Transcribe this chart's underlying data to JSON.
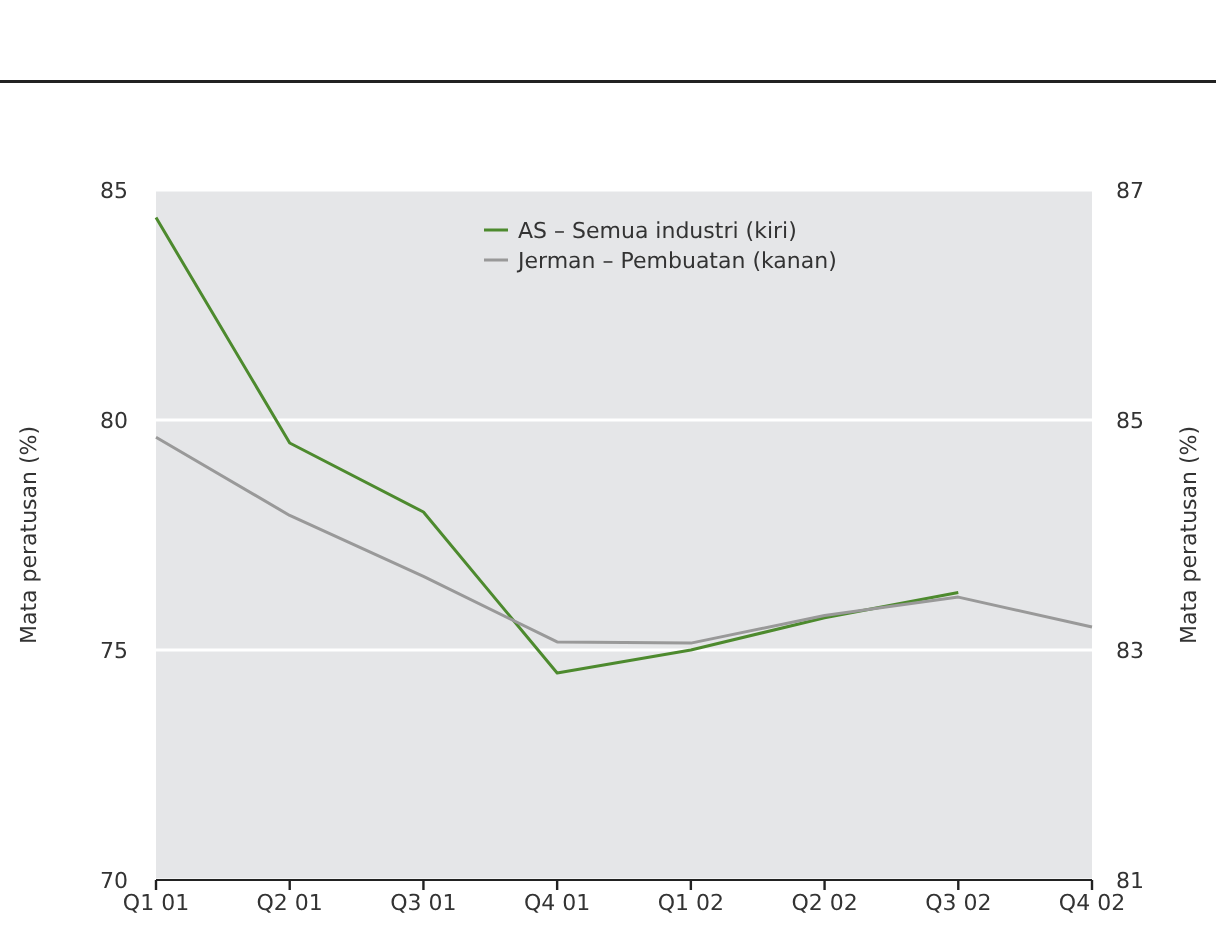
{
  "chart_data": {
    "type": "line",
    "categories": [
      "Q1 01",
      "Q2 01",
      "Q3 01",
      "Q4 01",
      "Q1 02",
      "Q2 02",
      "Q3 02",
      "Q4 02"
    ],
    "series": [
      {
        "name": "AS – Semua industri (kiri)",
        "color": "#4d8a2e",
        "values": [
          84.4,
          79.5,
          78.0,
          74.5,
          75.0,
          75.7,
          76.25,
          null
        ]
      },
      {
        "name": "Jerman – Pembuatan (kanan)",
        "color": "#999999",
        "axis": "y2",
        "values": [
          84.85,
          84.17,
          83.64,
          83.07,
          83.06,
          83.3,
          83.46,
          83.2
        ]
      }
    ],
    "ylabel": "Mata peratusan (%)",
    "y2label": "Mata peratusan (%)",
    "ylim": [
      70,
      85
    ],
    "yticks": [
      70,
      75,
      80,
      85
    ],
    "y2lim": [
      81,
      87
    ],
    "y2ticks": [
      81,
      83,
      85,
      87
    ],
    "grid": "y",
    "legend": "top",
    "marker": "none",
    "line_style": "solid"
  }
}
